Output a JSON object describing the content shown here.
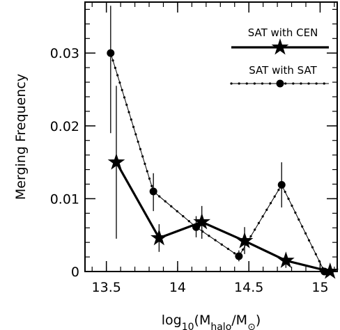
{
  "chart_data": {
    "type": "line",
    "title": "",
    "xlabel": "log10(Mhalo/M⊙)",
    "xlabel_parts": {
      "base": "log",
      "base_sub": "10",
      "open": "(M",
      "num_sub": "halo",
      "slash": "/M",
      "sun": "⊙",
      "close": ")"
    },
    "ylabel": "Merging Frequency",
    "xlim": [
      13.35,
      15.12
    ],
    "ylim": [
      0,
      0.037
    ],
    "x_ticks": [
      13.5,
      14,
      14.5,
      15
    ],
    "x_tick_labels": [
      "13.5",
      "14",
      "14.5",
      "15"
    ],
    "y_ticks": [
      0,
      0.01,
      0.02,
      0.03
    ],
    "y_tick_labels": [
      "0",
      "0.01",
      "0.02",
      "0.03"
    ],
    "x_minor_step": 0.1,
    "y_minor_step": 0.002,
    "grid": false,
    "legend_position": "top-right",
    "series": [
      {
        "name": "SAT with CEN",
        "marker": "star",
        "line": "thick-solid",
        "points": [
          {
            "x": 13.57,
            "y": 0.015,
            "err_lo": 0.0045,
            "err_hi": 0.0255
          },
          {
            "x": 13.87,
            "y": 0.0046,
            "err_lo": 0.0027,
            "err_hi": 0.0065
          },
          {
            "x": 14.17,
            "y": 0.0068,
            "err_lo": 0.0045,
            "err_hi": 0.009
          },
          {
            "x": 14.47,
            "y": 0.0042,
            "err_lo": 0.0024,
            "err_hi": 0.0061
          },
          {
            "x": 14.76,
            "y": 0.0015,
            "err_lo": 0.0005,
            "err_hi": 0.0025
          },
          {
            "x": 15.07,
            "y": 0.0,
            "err_lo": 0.0,
            "err_hi": 0.0
          }
        ]
      },
      {
        "name": "SAT with SAT",
        "marker": "circle",
        "line": "thin-dotted",
        "points": [
          {
            "x": 13.53,
            "y": 0.03,
            "err_lo": 0.019,
            "err_hi": 0.0365
          },
          {
            "x": 13.83,
            "y": 0.011,
            "err_lo": 0.0083,
            "err_hi": 0.0135
          },
          {
            "x": 14.13,
            "y": 0.0061,
            "err_lo": 0.0047,
            "err_hi": 0.0076
          },
          {
            "x": 14.43,
            "y": 0.0021,
            "err_lo": 0.0014,
            "err_hi": 0.0029
          },
          {
            "x": 14.73,
            "y": 0.0119,
            "err_lo": 0.0088,
            "err_hi": 0.015
          },
          {
            "x": 15.03,
            "y": 0.0,
            "err_lo": 0.0,
            "err_hi": 0.0
          }
        ]
      }
    ]
  }
}
